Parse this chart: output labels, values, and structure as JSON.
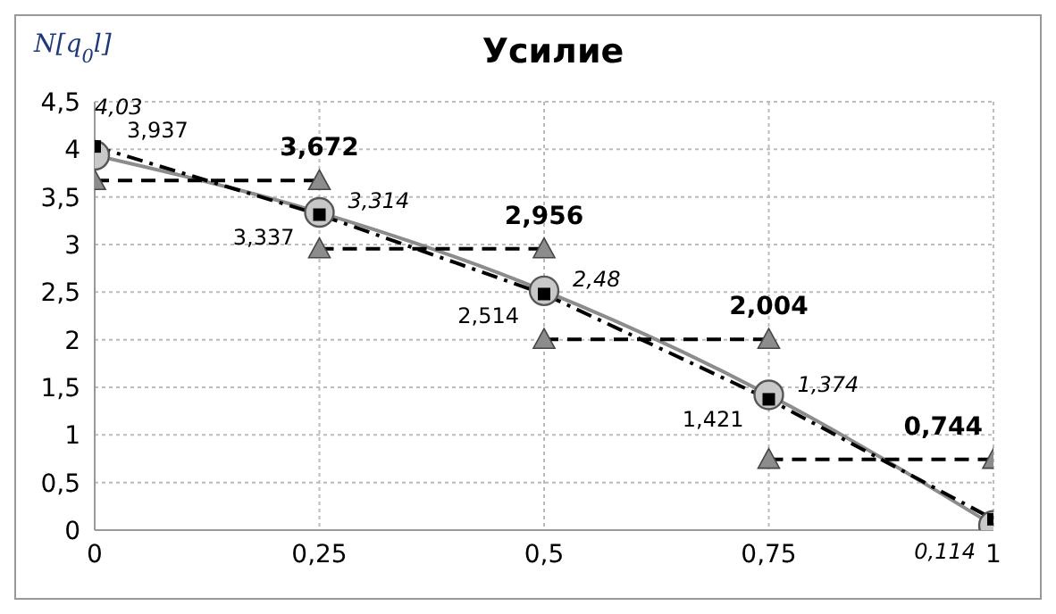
{
  "chart_data": {
    "type": "line",
    "title": "Усилие",
    "ylabel": "N[q$_{0}$l]",
    "xlim": [
      0,
      1
    ],
    "xticks": [
      0,
      {
        "value": 0.25,
        "label": "0,25"
      },
      {
        "value": 0.5,
        "label": "0,5"
      },
      {
        "value": 0.75,
        "label": "0,75"
      },
      1
    ],
    "ylim": [
      0,
      4.5
    ],
    "yticks": [
      0,
      {
        "value": 0.5,
        "label": "0,5"
      },
      1,
      {
        "value": 1.5,
        "label": "1,5"
      },
      2,
      {
        "value": 2.5,
        "label": "2,5"
      },
      3,
      {
        "value": 3.5,
        "label": "3,5"
      },
      4,
      {
        "value": 4.5,
        "label": "4,5"
      }
    ],
    "grid": true,
    "series": [
      {
        "color": "#8c8c8c",
        "marker": "circle",
        "line_style": "solid",
        "x": [
          0,
          0.25,
          0.5,
          0.75,
          1
        ],
        "values": [
          3.937,
          3.337,
          2.514,
          1.421,
          0.05
        ],
        "value_labels": [
          "3,937",
          "3,337",
          "2,514",
          "1,421",
          null
        ]
      },
      {
        "color": "#000000",
        "marker": "square",
        "line_style": "dashdot",
        "x": [
          0,
          0.25,
          0.5,
          0.75,
          1
        ],
        "values": [
          4.03,
          3.314,
          2.48,
          1.374,
          0.114
        ],
        "value_labels": [
          "4,03",
          "3,314",
          "2,48",
          "1,374",
          "0,114"
        ]
      },
      {
        "color": "#000000",
        "marker": "triangle",
        "line_style": "dashed",
        "x": [
          0,
          0.25
        ],
        "values": [
          3.672,
          3.672
        ],
        "value_labels": [
          null,
          "3,672"
        ]
      },
      {
        "color": "#000000",
        "marker": "triangle",
        "line_style": "dashed",
        "x": [
          0.25,
          0.5
        ],
        "values": [
          2.956,
          2.956
        ],
        "value_labels": [
          null,
          "2,956"
        ]
      },
      {
        "color": "#000000",
        "marker": "triangle",
        "line_style": "dashed",
        "x": [
          0.5,
          0.75
        ],
        "values": [
          2.004,
          2.004
        ],
        "value_labels": [
          null,
          "2,004"
        ]
      },
      {
        "color": "#000000",
        "marker": "triangle",
        "line_style": "dashed",
        "x": [
          0.75,
          1
        ],
        "values": [
          0.744,
          0.744
        ],
        "value_labels": [
          null,
          "0,744"
        ]
      }
    ]
  }
}
